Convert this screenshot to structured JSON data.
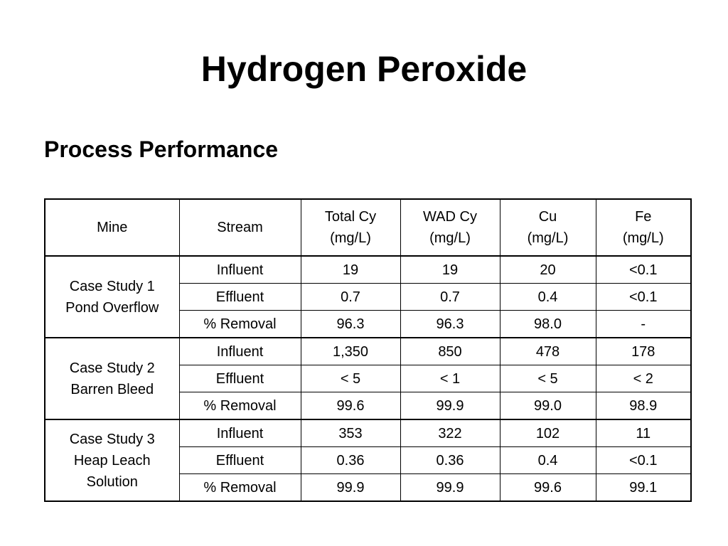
{
  "slide": {
    "title": "Hydrogen Peroxide",
    "subtitle": "Process Performance"
  },
  "table": {
    "headers": [
      [
        "Mine"
      ],
      [
        "Stream"
      ],
      [
        "Total Cy",
        "(mg/L)"
      ],
      [
        "WAD Cy",
        "(mg/L)"
      ],
      [
        "Cu",
        "(mg/L)"
      ],
      [
        "Fe",
        "(mg/L)"
      ]
    ],
    "groups": [
      {
        "mine": [
          "Case Study 1",
          "Pond Overflow"
        ],
        "rows": [
          [
            "Influent",
            "19",
            "19",
            "20",
            "<0.1"
          ],
          [
            "Effluent",
            "0.7",
            "0.7",
            "0.4",
            "<0.1"
          ],
          [
            "% Removal",
            "96.3",
            "96.3",
            "98.0",
            "-"
          ]
        ]
      },
      {
        "mine": [
          "Case Study 2",
          "Barren Bleed"
        ],
        "rows": [
          [
            "Influent",
            "1,350",
            "850",
            "478",
            "178"
          ],
          [
            "Effluent",
            "< 5",
            "< 1",
            "< 5",
            "< 2"
          ],
          [
            "% Removal",
            "99.6",
            "99.9",
            "99.0",
            "98.9"
          ]
        ]
      },
      {
        "mine": [
          "Case Study 3",
          "Heap Leach",
          "Solution"
        ],
        "rows": [
          [
            "Influent",
            "353",
            "322",
            "102",
            "11"
          ],
          [
            "Effluent",
            "0.36",
            "0.36",
            "0.4",
            "<0.1"
          ],
          [
            "% Removal",
            "99.9",
            "99.9",
            "99.6",
            "99.1"
          ]
        ]
      }
    ]
  }
}
